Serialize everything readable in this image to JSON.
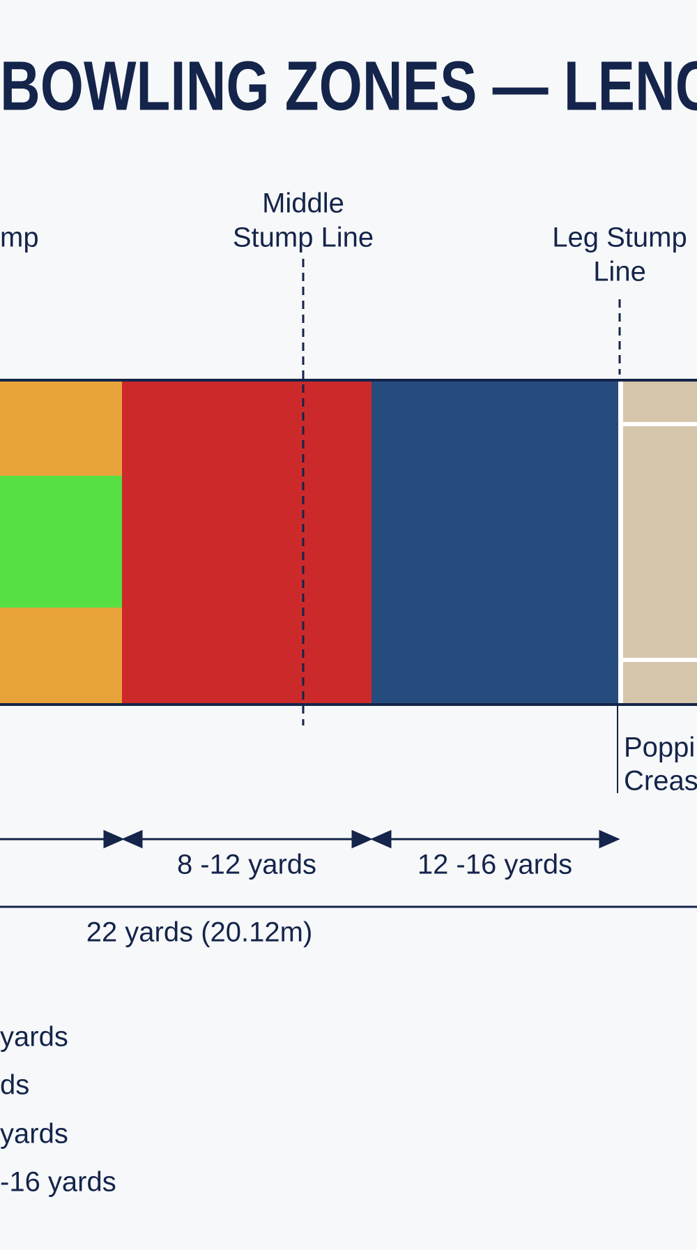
{
  "header": {
    "title": "BOWLING ZONES — LENGT"
  },
  "stump_lines": {
    "off_fragment": "mp",
    "middle": [
      "Middle",
      "Stump Line"
    ],
    "leg": [
      "Leg Stump",
      "Line"
    ]
  },
  "crease": [
    "Poppin",
    "Creas"
  ],
  "measurements": {
    "segments": [
      "8 -12 yards",
      "12 -16 yards"
    ],
    "total": "22 yards (20.12m)"
  },
  "legend": [
    "yards",
    "ds",
    "yards",
    "-16 yards"
  ]
}
